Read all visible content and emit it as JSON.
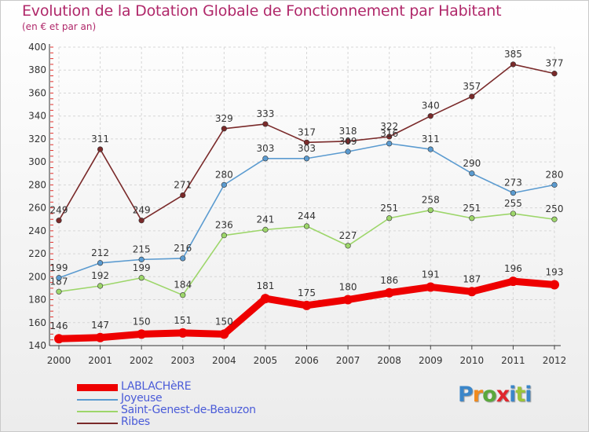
{
  "title": "Evolution de la Dotation Globale de Fonctionnement par Habitant",
  "subtitle": "(en € et par an)",
  "logo": {
    "text": "Proxiti",
    "letter_colors": [
      "#3b86c9",
      "#f08a1e",
      "#5aa83c",
      "#e0262d",
      "#3b86c9",
      "#9bc43a",
      "#3b86c9"
    ]
  },
  "chart_data": {
    "type": "line",
    "title": "Evolution de la Dotation Globale de Fonctionnement par Habitant",
    "subtitle": "(en € et par an)",
    "x": [
      "2000",
      "2001",
      "2002",
      "2003",
      "2004",
      "2005",
      "2006",
      "2007",
      "2008",
      "2009",
      "2010",
      "2011",
      "2012"
    ],
    "ylim": [
      140,
      400
    ],
    "yticks": [
      140,
      160,
      180,
      200,
      220,
      240,
      260,
      280,
      300,
      320,
      340,
      360,
      380,
      400
    ],
    "grid": true,
    "legend_position": "bottom-left",
    "series": [
      {
        "name": "LABLACHèRE",
        "color": "#ee0000",
        "values": [
          146,
          147,
          150,
          151,
          150,
          181,
          175,
          180,
          186,
          191,
          187,
          196,
          193
        ]
      },
      {
        "name": "Joyeuse",
        "color": "#5b9bd0",
        "values": [
          199,
          212,
          215,
          216,
          280,
          303,
          303,
          309,
          316,
          311,
          290,
          273,
          280
        ]
      },
      {
        "name": "Saint-Genest-de-Beauzon",
        "color": "#9dd66a",
        "values": [
          187,
          192,
          199,
          184,
          236,
          241,
          244,
          227,
          251,
          258,
          251,
          255,
          250
        ]
      },
      {
        "name": "Ribes",
        "color": "#7a2a2a",
        "values": [
          249,
          311,
          249,
          271,
          329,
          333,
          317,
          318,
          322,
          340,
          357,
          385,
          377
        ]
      }
    ]
  }
}
